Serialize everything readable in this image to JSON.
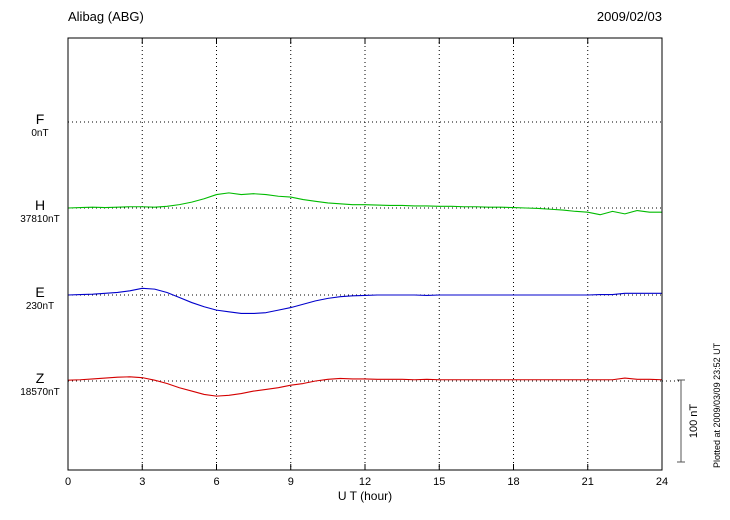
{
  "header": {
    "station": "Alibag (ABG)",
    "date": "2009/02/03"
  },
  "footer": {
    "plotted_note": "Plotted at 2009/03/09 23:52 UT"
  },
  "chart_data": {
    "type": "line",
    "title": "Alibag (ABG)",
    "subtitle": "2009/02/03",
    "xlabel": "U T (hour)",
    "x_range": [
      0,
      24
    ],
    "x_ticks": [
      0,
      3,
      6,
      9,
      12,
      15,
      18,
      21,
      24
    ],
    "sample_step_hours": 0.5,
    "grid": "dotted",
    "legend_position": "left",
    "scale_bar": {
      "label": "100 nT",
      "nanotesla": 100
    },
    "series": [
      {
        "name": "F",
        "baseline_value_label": "0nT",
        "color": "#f0a000",
        "offsets_nt": []
      },
      {
        "name": "H",
        "baseline_value_label": "37810nT",
        "color": "#00bb00",
        "offsets_nt": [
          0,
          0.5,
          1,
          0.5,
          1,
          1.5,
          1.5,
          1,
          2,
          4,
          7,
          11,
          16,
          18,
          16,
          17,
          16,
          14,
          13,
          10,
          8,
          6,
          5,
          4,
          4,
          3.5,
          3,
          3,
          2.5,
          2.5,
          2,
          2,
          1.5,
          1.5,
          1,
          1,
          0.5,
          0,
          -0.5,
          -1.5,
          -2.5,
          -4,
          -5,
          -8,
          -4,
          -7,
          -3,
          -5,
          -5
        ]
      },
      {
        "name": "E",
        "baseline_value_label": "230nT",
        "color": "#0000cc",
        "offsets_nt": [
          0,
          0.5,
          1,
          2,
          3,
          5,
          8,
          7,
          3,
          -3,
          -9,
          -14,
          -18,
          -20,
          -22,
          -22,
          -21,
          -18,
          -15,
          -11,
          -7,
          -4,
          -2,
          -1,
          -0.5,
          0,
          0,
          0,
          0,
          -0.5,
          0,
          0,
          0,
          0,
          0,
          0,
          0,
          0,
          0,
          0,
          0,
          0,
          0,
          0.5,
          0.5,
          2,
          2,
          2,
          2
        ]
      },
      {
        "name": "Z",
        "baseline_value_label": "18570nT",
        "color": "#d40000",
        "offsets_nt": [
          1,
          1.5,
          2.5,
          3.5,
          4.5,
          5,
          4,
          1,
          -3,
          -8,
          -12,
          -16,
          -18,
          -17,
          -15,
          -12,
          -10,
          -8,
          -5,
          -3,
          0,
          2,
          3,
          2.5,
          2.5,
          2,
          2,
          2,
          1.5,
          2,
          1.5,
          1.5,
          1.5,
          1.5,
          1.5,
          1.5,
          1.5,
          1.5,
          1.5,
          1.5,
          1.5,
          1.5,
          1.5,
          1.5,
          1.5,
          3.5,
          2,
          2,
          1.5
        ]
      }
    ]
  }
}
